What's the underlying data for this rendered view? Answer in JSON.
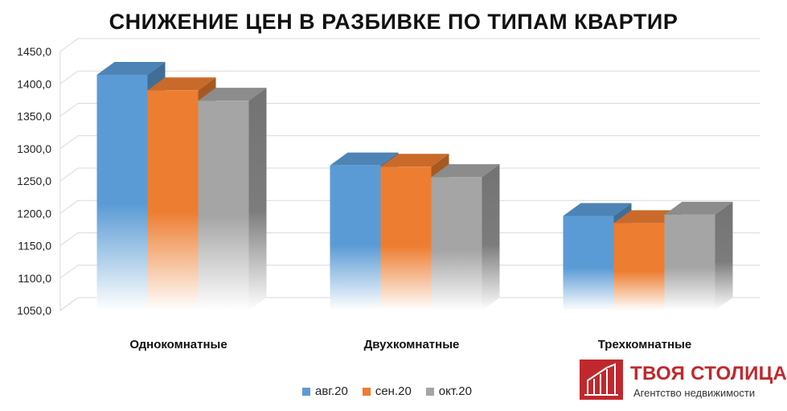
{
  "chart_data": {
    "type": "bar",
    "title": "СНИЖЕНИЕ ЦЕН В РАЗБИВКЕ ПО ТИПАМ КВАРТИР",
    "categories": [
      "Однокомнатные",
      "Двухкомнатные",
      "Трехкомнатные"
    ],
    "series": [
      {
        "name": "авг.20",
        "values": [
          1414,
          1274,
          1196
        ],
        "color": "#5b9bd5"
      },
      {
        "name": "сен.20",
        "values": [
          1390,
          1272,
          1185
        ],
        "color": "#ed7d31"
      },
      {
        "name": "окт.20",
        "values": [
          1374,
          1256,
          1198
        ],
        "color": "#a5a5a5"
      }
    ],
    "ylim": [
      1050,
      1450
    ],
    "yticks": [
      "1050,0",
      "1100,0",
      "1150,0",
      "1200,0",
      "1250,0",
      "1300,0",
      "1350,0",
      "1400,0",
      "1450,0"
    ],
    "grid": true,
    "legend": "bottom",
    "style": "3d-column"
  },
  "brand": {
    "name": "ТВОЯ СТОЛИЦА",
    "registered": "®",
    "tagline": "Агентство недвижимости",
    "color": "#c0282d"
  }
}
